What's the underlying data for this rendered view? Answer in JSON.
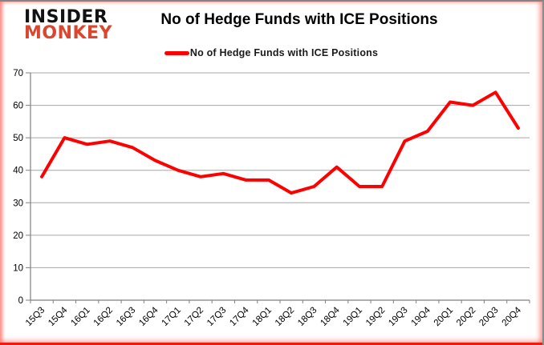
{
  "logo": {
    "line1": "INSIDER",
    "line2": "MONKEY",
    "brand_color": "#d9472f"
  },
  "header": {
    "title": "No of Hedge Funds with ICE Positions"
  },
  "legend": {
    "label": "No of Hedge Funds with ICE Positions",
    "swatch_color": "#ff0000"
  },
  "chart_data": {
    "type": "line",
    "title": "No of Hedge Funds with ICE Positions",
    "series_name": "No of Hedge Funds with ICE Positions",
    "categories": [
      "15Q3",
      "15Q4",
      "16Q1",
      "16Q2",
      "16Q3",
      "16Q4",
      "17Q1",
      "17Q2",
      "17Q3",
      "17Q4",
      "18Q1",
      "18Q2",
      "18Q3",
      "18Q4",
      "19Q1",
      "19Q2",
      "19Q3",
      "19Q4",
      "20Q1",
      "20Q2",
      "20Q3",
      "20Q4"
    ],
    "values": [
      38,
      50,
      48,
      49,
      47,
      43,
      40,
      38,
      39,
      37,
      37,
      33,
      35,
      41,
      35,
      35,
      49,
      52,
      61,
      60,
      64,
      53
    ],
    "xlabel": "",
    "ylabel": "",
    "ylim": [
      0,
      70
    ],
    "yticks": [
      0,
      10,
      20,
      30,
      40,
      50,
      60,
      70
    ],
    "grid": true,
    "legend_position": "top-center",
    "line_color": "#ff0000",
    "grid_color": "#a6a6a6",
    "axis_color": "#808080",
    "tick_label_color": "#000000"
  }
}
